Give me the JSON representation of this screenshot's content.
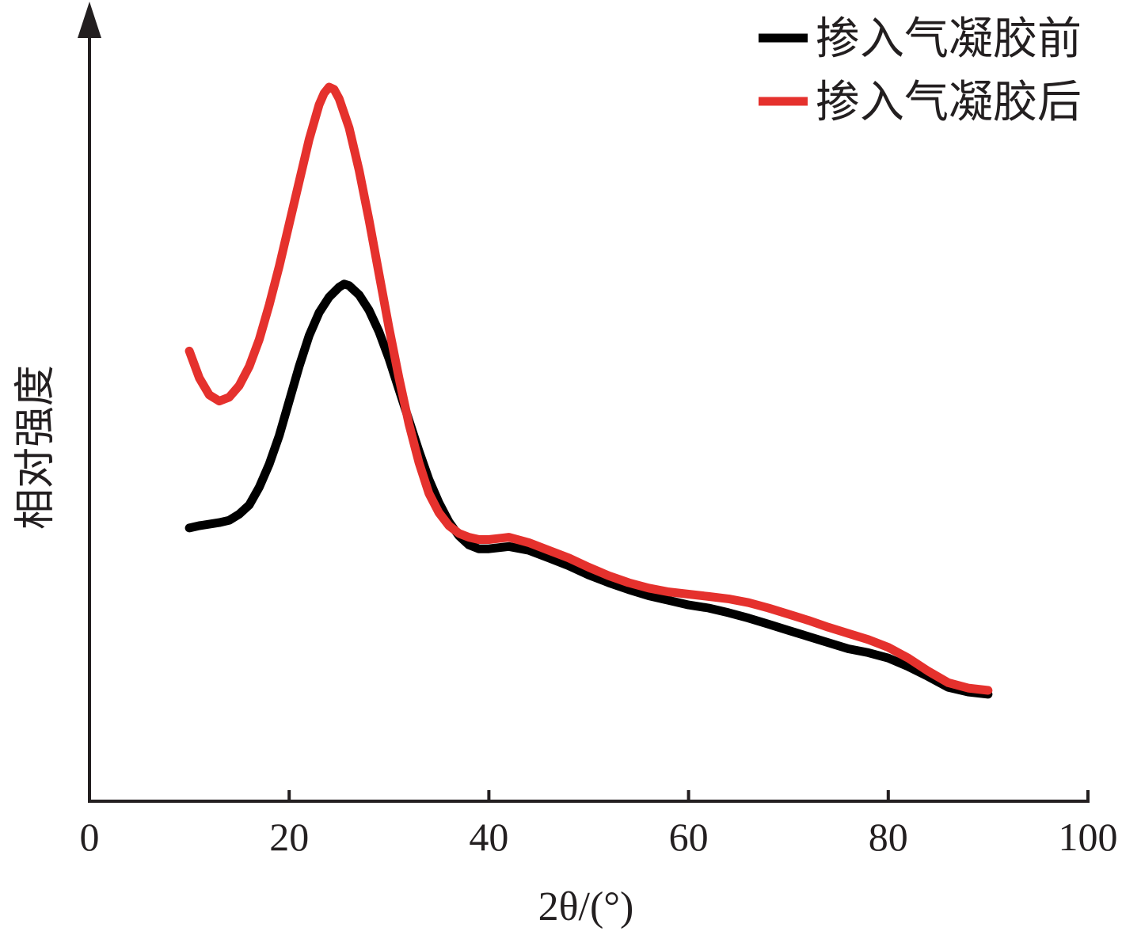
{
  "chart_data": {
    "type": "line",
    "xlabel": "2θ/(°)",
    "ylabel": "相对强度",
    "xlim": [
      0,
      100
    ],
    "ylim": [
      0,
      100
    ],
    "xticks": [
      "0",
      "20",
      "40",
      "60",
      "80",
      "100"
    ],
    "y_ticks_shown": false,
    "grid": false,
    "legend_position": "top-right",
    "series": [
      {
        "name": "掺入气凝胶前",
        "color": "#000000",
        "x": [
          10,
          11,
          12,
          13,
          14,
          15,
          16,
          17,
          18,
          19,
          20,
          21,
          22,
          23,
          24,
          25,
          25.5,
          26,
          27,
          28,
          29,
          30,
          31,
          32,
          33,
          34,
          35,
          36,
          37,
          38,
          39,
          40,
          42,
          44,
          46,
          48,
          50,
          52,
          54,
          56,
          58,
          60,
          62,
          64,
          66,
          68,
          70,
          72,
          74,
          76,
          78,
          80,
          82,
          84,
          86,
          88,
          90
        ],
        "y": [
          35.5,
          35.8,
          36.0,
          36.2,
          36.5,
          37.3,
          38.5,
          40.8,
          43.8,
          47.5,
          52.0,
          56.5,
          60.5,
          63.5,
          65.5,
          66.8,
          67.2,
          67.0,
          65.8,
          63.8,
          61.0,
          57.5,
          53.5,
          49.5,
          45.5,
          41.8,
          38.8,
          36.3,
          34.5,
          33.3,
          32.8,
          32.8,
          33.1,
          32.6,
          31.6,
          30.6,
          29.4,
          28.4,
          27.5,
          26.7,
          26.1,
          25.5,
          25.1,
          24.5,
          23.8,
          23.0,
          22.2,
          21.4,
          20.6,
          19.8,
          19.3,
          18.6,
          17.5,
          16.2,
          14.8,
          14.2,
          13.9
        ]
      },
      {
        "name": "掺入气凝胶后",
        "color": "#e5312d",
        "x": [
          10,
          11,
          12,
          13,
          14,
          15,
          16,
          17,
          18,
          19,
          20,
          21,
          22,
          23,
          23.5,
          24,
          24.5,
          25,
          26,
          27,
          28,
          29,
          30,
          31,
          32,
          33,
          34,
          35,
          36,
          37,
          38,
          39,
          40,
          42,
          44,
          46,
          48,
          50,
          52,
          54,
          56,
          58,
          60,
          62,
          64,
          66,
          68,
          70,
          72,
          74,
          76,
          78,
          80,
          82,
          84,
          86,
          88,
          90
        ],
        "y": [
          58.5,
          55.0,
          52.8,
          52.0,
          52.5,
          54.0,
          56.5,
          60.0,
          64.5,
          69.5,
          75.0,
          80.5,
          86.0,
          90.5,
          92.0,
          92.8,
          92.5,
          91.3,
          87.5,
          82.0,
          75.5,
          68.5,
          61.5,
          55.0,
          49.0,
          44.0,
          40.0,
          37.5,
          35.8,
          34.8,
          34.3,
          34.0,
          34.0,
          34.3,
          33.6,
          32.6,
          31.6,
          30.4,
          29.3,
          28.4,
          27.7,
          27.2,
          26.9,
          26.6,
          26.3,
          25.8,
          25.1,
          24.3,
          23.5,
          22.6,
          21.8,
          21.0,
          20.0,
          18.6,
          16.9,
          15.4,
          14.7,
          14.4
        ]
      }
    ]
  }
}
